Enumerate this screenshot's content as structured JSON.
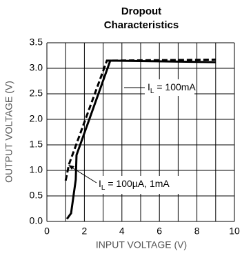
{
  "chart_data": {
    "type": "line",
    "title": [
      "Dropout",
      "Characteristics"
    ],
    "xlabel": "INPUT VOLTAGE (V)",
    "ylabel": "OUTPUT VOLTAGE (V)",
    "xlim": [
      0,
      10
    ],
    "xticks": [
      0,
      2,
      4,
      6,
      8,
      10
    ],
    "xminor": [
      1,
      3,
      5,
      7,
      9
    ],
    "ylim": [
      0,
      3.5
    ],
    "yticks": [
      {
        "value": 0,
        "label": "0.0"
      },
      0.5,
      {
        "value": 1,
        "label": "1.0"
      },
      1.5,
      {
        "value": 2,
        "label": "2.0"
      },
      2.5,
      {
        "value": 3,
        "label": "3.0"
      },
      3.5
    ],
    "grid": true,
    "series": [
      {
        "color": "#000000",
        "dash": false,
        "x": [
          1.07,
          1.29,
          1.54,
          1.58,
          3.38,
          9.0
        ],
        "values": [
          0.05,
          0.16,
          0.82,
          1.3,
          3.15,
          3.12
        ]
      },
      {
        "color": "#000000",
        "dash": true,
        "x": [
          1.0,
          1.18,
          3.2,
          9.0
        ],
        "values": [
          0.8,
          1.12,
          3.15,
          3.17
        ]
      }
    ],
    "annotations": [
      {
        "prefix": "I",
        "sub": "L",
        "text": " = 100mA"
      },
      {
        "prefix": "I",
        "sub": "L",
        "text": " = 100µA, 1mA"
      }
    ]
  }
}
